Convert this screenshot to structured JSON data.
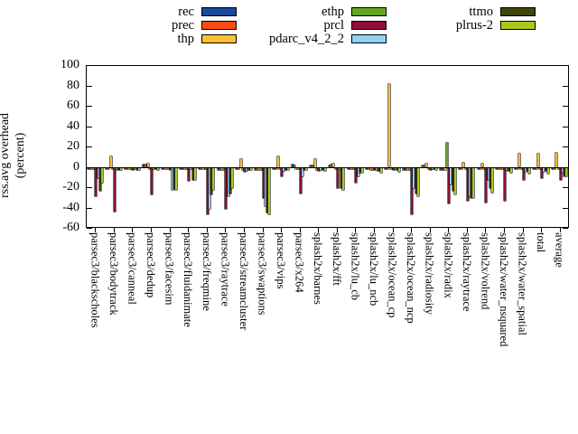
{
  "ylabel": {
    "line1": "rss.avg overhead",
    "line2": "(percent)"
  },
  "chart_data": {
    "type": "bar",
    "title": "",
    "xlabel": "",
    "ylabel": "rss.avg overhead (percent)",
    "ylim": [
      -60,
      100
    ],
    "yticks": [
      100,
      80,
      60,
      40,
      20,
      0,
      -20,
      -40,
      -60
    ],
    "grid": false,
    "legend_position": "top",
    "categories": [
      "parsec3/blackscholes",
      "parsec3/bodytrack",
      "parsec3/canneal",
      "parsec3/dedup",
      "parsec3/facesim",
      "parsec3/fluidanimate",
      "parsec3/freqmine",
      "parsec3/raytrace",
      "parsec3/streamcluster",
      "parsec3/swaptions",
      "parsec3/vips",
      "parsec3/x264",
      "splash2x/barnes",
      "splash2x/fft",
      "splash2x/lu_cb",
      "splash2x/lu_ncb",
      "splash2x/ocean_cp",
      "splash2x/ocean_ncp",
      "splash2x/radiosity",
      "splash2x/radix",
      "splash2x/raytrace",
      "splash2x/volrend",
      "splash2x/water_nsquared",
      "splash2x/water_spatial",
      "total",
      "average"
    ],
    "series": [
      {
        "name": "rec",
        "color": "#1b4a97",
        "values": [
          -1,
          -1,
          -1,
          2,
          -1,
          -1,
          -1,
          -2,
          -1,
          -2,
          -1,
          2,
          1,
          1,
          -1,
          -1,
          -1,
          -2,
          1,
          -2,
          -1,
          -1,
          -1,
          -1,
          -1,
          -1
        ]
      },
      {
        "name": "prec",
        "color": "#fb4a12",
        "values": [
          -1,
          -1,
          -1,
          2,
          -1,
          -1,
          -1,
          -2,
          -1,
          -2,
          -1,
          1,
          1,
          2,
          -1,
          -1,
          -1,
          -2,
          1,
          -2,
          -1,
          -1,
          -1,
          -1,
          -1,
          -1
        ]
      },
      {
        "name": "thp",
        "color": "#fdc32e",
        "values": [
          -1,
          10,
          -1,
          3,
          -1,
          -1,
          -1,
          -2,
          8,
          -2,
          10,
          -1,
          8,
          3,
          -1,
          -2,
          81,
          -2,
          3,
          -2,
          4,
          3,
          -1,
          13,
          13,
          14
        ]
      },
      {
        "name": "ethp",
        "color": "#65a61f",
        "values": [
          -1,
          -1,
          -1,
          -1,
          -1,
          -1,
          -1,
          -2,
          -2,
          -2,
          -1,
          -1,
          -2,
          -1,
          -1,
          -2,
          -1,
          -2,
          -1,
          24,
          -1,
          -1,
          -1,
          -1,
          -1,
          -1
        ]
      },
      {
        "name": "prcl",
        "color": "#8f0f34",
        "values": [
          -28,
          -43,
          -2,
          -26,
          -2,
          -13,
          -46,
          -40,
          -4,
          -30,
          -8,
          -25,
          -3,
          -20,
          -15,
          -2,
          -2,
          -46,
          -2,
          -35,
          -32,
          -34,
          -32,
          -12,
          -10,
          -12
        ]
      },
      {
        "name": "pdarc_v4_2_2",
        "color": "#8fd0f5",
        "values": [
          -10,
          -1,
          -1,
          -1,
          -22,
          -1,
          -40,
          -28,
          -3,
          -38,
          -3,
          -8,
          -2,
          -1,
          -8,
          -2,
          -1,
          -20,
          -1,
          -16,
          -28,
          -12,
          -2,
          -4,
          -4,
          -5
        ]
      },
      {
        "name": "ttmo",
        "color": "#41440d",
        "values": [
          -23,
          -2,
          -2,
          -1,
          -21,
          -12,
          -26,
          -25,
          -2,
          -44,
          -2,
          -2,
          -2,
          -20,
          -5,
          -3,
          -2,
          -25,
          -1,
          -23,
          -30,
          -20,
          -3,
          -3,
          -3,
          -8
        ]
      },
      {
        "name": "plrus-2",
        "color": "#abc91c",
        "values": [
          -15,
          -2,
          -2,
          -2,
          -22,
          -12,
          -22,
          -20,
          -2,
          -46,
          -2,
          -2,
          -3,
          -22,
          -5,
          -5,
          -4,
          -28,
          -2,
          -26,
          -30,
          -24,
          -5,
          -6,
          -6,
          -8
        ]
      }
    ]
  },
  "layout_hints": {
    "legend_columns": 3
  }
}
